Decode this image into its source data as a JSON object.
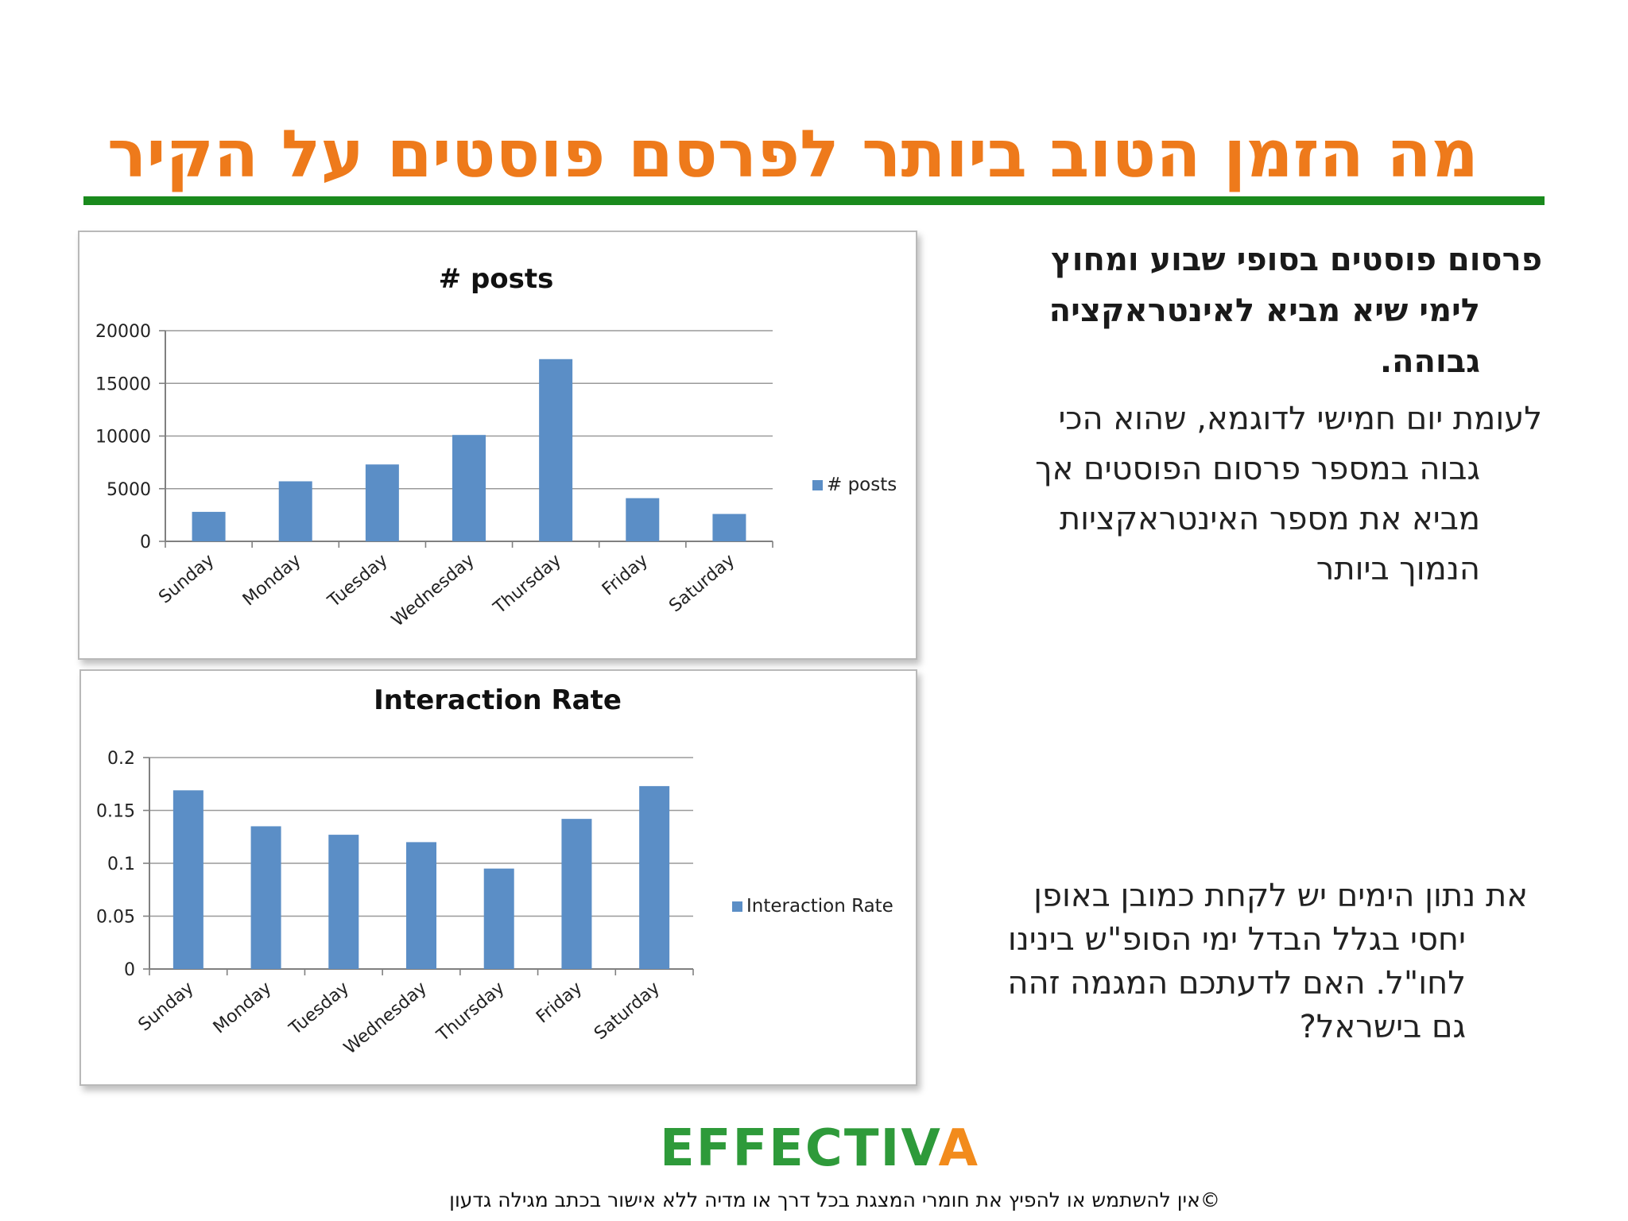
{
  "slide": {
    "title": "מה הזמן הטוב ביותר לפרסם פוסטים על הקיר",
    "paragraph_1_lines": [
      "פרסום פוסטים בסופי שבוע ומחוץ",
      "לימי שיא מביא לאינטראקציה",
      "גבוהה."
    ],
    "paragraph_2_lines": [
      "לעומת יום חמישי לדוגמא, שהוא הכי",
      "גבוה במספר פרסום הפוסטים אך",
      "מביא את מספר האינטראקציות",
      "הנמוך ביותר"
    ],
    "paragraph_3_lines": [
      "את נתון הימים יש לקחת כמובן באופן",
      "יחסי בגלל הבדל ימי הסופ\"ש בינינו",
      "לחו\"ל. האם לדעתכם המגמה זהה",
      "גם בישראל?"
    ],
    "logo_text_main": "EFFECTIV",
    "logo_text_accent": "A",
    "footer": "©אין להשתמש או להפיץ את חומרי המצגת בכל דרך או מדיה ללא אישור בכתב מגילה גדעון",
    "colors": {
      "title": "#ee7a1b",
      "rule": "#1a8a1d",
      "bar": "#5b8ec6",
      "logo_green": "#2e9a3a",
      "logo_orange": "#f28b1c"
    }
  },
  "chart_data": [
    {
      "type": "bar",
      "title": "# posts",
      "categories": [
        "Sunday",
        "Monday",
        "Tuesday",
        "Wednesday",
        "Thursday",
        "Friday",
        "Saturday"
      ],
      "series": [
        {
          "name": "# posts",
          "values": [
            2800,
            5700,
            7300,
            10100,
            17300,
            4100,
            2600
          ]
        }
      ],
      "ylim": [
        0,
        20000
      ],
      "yticks": [
        "0",
        "5000",
        "10000",
        "15000",
        "20000"
      ],
      "grid": true,
      "legend": "right"
    },
    {
      "type": "bar",
      "title": "Interaction Rate",
      "categories": [
        "Sunday",
        "Monday",
        "Tuesday",
        "Wednesday",
        "Thursday",
        "Friday",
        "Saturday"
      ],
      "series": [
        {
          "name": "Interaction Rate",
          "values": [
            0.169,
            0.135,
            0.127,
            0.12,
            0.095,
            0.142,
            0.173
          ]
        }
      ],
      "ylim": [
        0,
        0.2
      ],
      "yticks": [
        "0",
        "0.05",
        "0.1",
        "0.15",
        "0.2"
      ],
      "grid": true,
      "legend": "right"
    }
  ]
}
